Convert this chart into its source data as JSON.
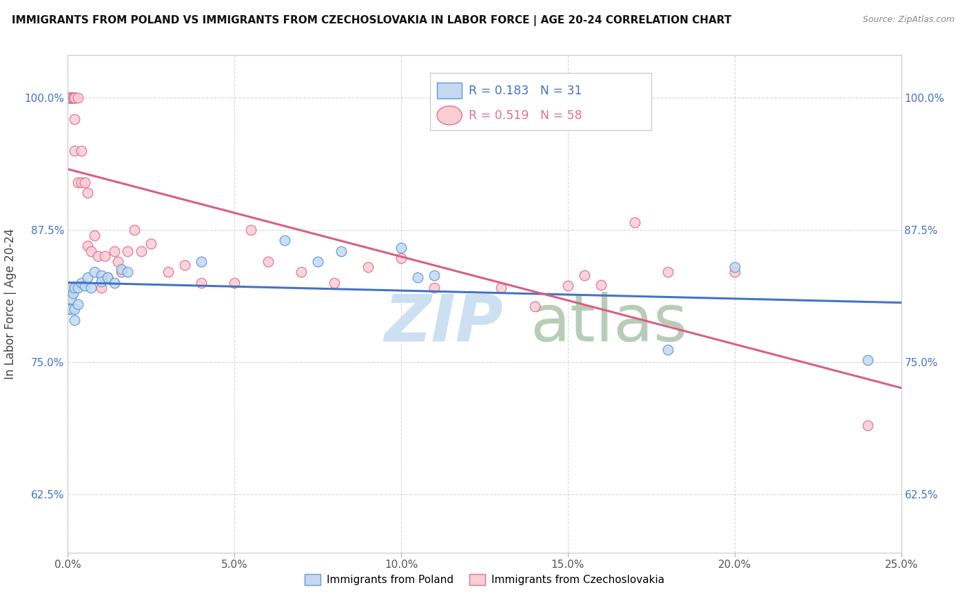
{
  "title": "IMMIGRANTS FROM POLAND VS IMMIGRANTS FROM CZECHOSLOVAKIA IN LABOR FORCE | AGE 20-24 CORRELATION CHART",
  "source": "Source: ZipAtlas.com",
  "ylabel": "In Labor Force | Age 20-24",
  "xlim": [
    0.0,
    0.25
  ],
  "ylim": [
    0.57,
    1.04
  ],
  "xticks": [
    0.0,
    0.05,
    0.1,
    0.15,
    0.2,
    0.25
  ],
  "xticklabels": [
    "0.0%",
    "5.0%",
    "10.0%",
    "15.0%",
    "20.0%",
    "25.0%"
  ],
  "yticks": [
    0.625,
    0.75,
    0.875,
    1.0
  ],
  "yticklabels": [
    "62.5%",
    "75.0%",
    "87.5%",
    "100.0%"
  ],
  "poland_color": "#c5d8f0",
  "poland_edge_color": "#5b9bd5",
  "czech_color": "#f9cdd4",
  "czech_edge_color": "#e07090",
  "poland_line_color": "#4472c4",
  "czech_line_color": "#d95f80",
  "poland_R": 0.183,
  "poland_N": 31,
  "czech_R": 0.519,
  "czech_N": 58,
  "grid_color": "#cccccc",
  "background_color": "#ffffff",
  "legend_label_poland": "Immigrants from Poland",
  "legend_label_czech": "Immigrants from Czechoslovakia",
  "poland_scatter_x": [
    0.0005,
    0.001,
    0.001,
    0.001,
    0.0015,
    0.002,
    0.002,
    0.002,
    0.003,
    0.003,
    0.004,
    0.005,
    0.006,
    0.007,
    0.008,
    0.01,
    0.01,
    0.012,
    0.014,
    0.016,
    0.018,
    0.04,
    0.065,
    0.075,
    0.082,
    0.1,
    0.105,
    0.11,
    0.18,
    0.2,
    0.24
  ],
  "poland_scatter_y": [
    0.8,
    0.82,
    0.81,
    0.8,
    0.815,
    0.82,
    0.8,
    0.79,
    0.82,
    0.805,
    0.825,
    0.822,
    0.83,
    0.82,
    0.835,
    0.832,
    0.826,
    0.83,
    0.825,
    0.838,
    0.835,
    0.845,
    0.865,
    0.845,
    0.855,
    0.858,
    0.83,
    0.832,
    0.762,
    0.84,
    0.752
  ],
  "czech_scatter_x": [
    0.0003,
    0.0005,
    0.0005,
    0.0005,
    0.0008,
    0.001,
    0.001,
    0.001,
    0.001,
    0.001,
    0.001,
    0.0015,
    0.002,
    0.002,
    0.002,
    0.002,
    0.002,
    0.002,
    0.003,
    0.003,
    0.004,
    0.004,
    0.005,
    0.006,
    0.006,
    0.007,
    0.008,
    0.009,
    0.01,
    0.011,
    0.012,
    0.014,
    0.015,
    0.016,
    0.018,
    0.02,
    0.022,
    0.025,
    0.03,
    0.035,
    0.04,
    0.05,
    0.055,
    0.06,
    0.07,
    0.08,
    0.09,
    0.1,
    0.11,
    0.13,
    0.14,
    0.15,
    0.155,
    0.16,
    0.17,
    0.18,
    0.2,
    0.24
  ],
  "czech_scatter_y": [
    1.0,
    1.0,
    1.0,
    1.0,
    1.0,
    1.0,
    1.0,
    1.0,
    1.0,
    1.0,
    1.0,
    1.0,
    1.0,
    1.0,
    1.0,
    1.0,
    0.98,
    0.95,
    1.0,
    0.92,
    0.95,
    0.92,
    0.92,
    0.91,
    0.86,
    0.855,
    0.87,
    0.85,
    0.82,
    0.85,
    0.83,
    0.855,
    0.845,
    0.835,
    0.855,
    0.875,
    0.855,
    0.862,
    0.835,
    0.842,
    0.825,
    0.825,
    0.875,
    0.845,
    0.835,
    0.825,
    0.84,
    0.848,
    0.82,
    0.82,
    0.803,
    0.822,
    0.832,
    0.823,
    0.882,
    0.835,
    0.835,
    0.69
  ],
  "watermark_zip_color": "#c8ddf0",
  "watermark_atlas_color": "#b0c8b0"
}
